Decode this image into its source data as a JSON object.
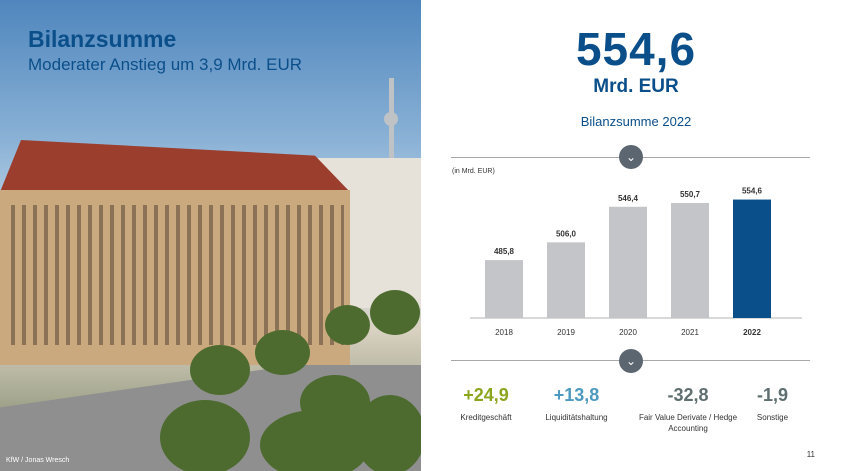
{
  "slide": {
    "heading": "Bilanzsumme",
    "subheading": "Moderater Anstieg um 3,9 Mrd. EUR",
    "photo_credit": "KfW / Jonas Wresch",
    "page_number": "11"
  },
  "kpi": {
    "value": "554,6",
    "unit": "Mrd. EUR",
    "caption": "Bilanzsumme 2022"
  },
  "icons": {
    "chevron_top": "chevron-down-icon",
    "chevron_bottom": "chevron-down-icon"
  },
  "chart_data": {
    "type": "bar",
    "unit_note": "(in Mrd. EUR)",
    "categories": [
      "2018",
      "2019",
      "2020",
      "2021",
      "2022"
    ],
    "values": [
      485.8,
      506.0,
      546.4,
      550.7,
      554.6
    ],
    "value_labels": [
      "485,8",
      "506,0",
      "546,4",
      "550,7",
      "554,6"
    ],
    "highlight_category": "2022",
    "colors": {
      "default": "#c3c5c8",
      "highlight": "#0b4f8a"
    },
    "title": "",
    "xlabel": "",
    "ylabel": "",
    "ylim": [
      420,
      570
    ],
    "grid": false
  },
  "breakdown": [
    {
      "value": "+24,9",
      "label": "Kreditgeschäft",
      "color": "#8ba61e"
    },
    {
      "value": "+13,8",
      "label": "Liquiditätshaltung",
      "color": "#4d99bf"
    },
    {
      "value": "-32,8",
      "label": "Fair Value Derivate / Hedge Accounting",
      "color": "#5f6f6f"
    },
    {
      "value": "-1,9",
      "label": "Sonstige",
      "color": "#5f6f6f"
    }
  ]
}
